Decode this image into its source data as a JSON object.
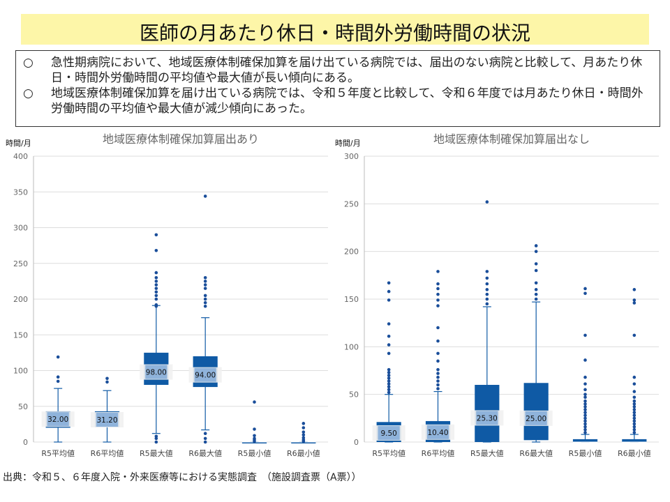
{
  "header": {
    "title": "医師の月あたり休日・時間外労働時間の状況"
  },
  "summary": [
    {
      "mark": "○",
      "text": "急性期病院において、地域医療体制確保加算を届け出ている病院では、届出のない病院と比較して、月あたり休日・時間外労働時間の平均値や最大値が長い傾向にある。"
    },
    {
      "mark": "○",
      "text": "地域医療体制確保加算を届け出ている病院では、令和５年度と比較して、令和６年度では月あたり休日・時間外労働時間の平均値や最大値が減少傾向にあった。"
    }
  ],
  "footer": {
    "source": "出典：令和５、６年度入院・外来医療等における実態調査　（施設調査票（A票））"
  },
  "colors": {
    "box": "#0f5aa5",
    "median_label_bg": "#8fb3db",
    "outlier": "#1a4e9a",
    "grid": "#dddddd"
  },
  "chart_data": [
    {
      "type": "box",
      "title": "地域医療体制確保加算届出あり",
      "ylabel": "時間/月",
      "ylim": [
        0,
        400
      ],
      "yticks": [
        0,
        50,
        100,
        150,
        200,
        250,
        300,
        350,
        400
      ],
      "categories": [
        "R5平均値",
        "R6平均値",
        "R5最大値",
        "R6最大値",
        "R5最小値",
        "R6最小値"
      ],
      "boxes": [
        {
          "category": "R5平均値",
          "whisker_low": 0,
          "q1": 20,
          "median": 32,
          "q3": 43,
          "whisker_high": 75,
          "label": "32.00",
          "outliers": [
            85,
            91,
            119
          ]
        },
        {
          "category": "R6平均値",
          "whisker_low": 0,
          "q1": 21,
          "median": 31.2,
          "q3": 43,
          "whisker_high": 72,
          "label": "31.20",
          "outliers": [
            84,
            89
          ]
        },
        {
          "category": "R5最大値",
          "whisker_low": 12,
          "q1": 80,
          "median": 98,
          "q3": 125,
          "whisker_high": 191,
          "label": "98.00",
          "outliers": [
            0,
            5,
            8,
            190,
            192,
            200,
            205,
            210,
            215,
            220,
            225,
            230,
            237,
            268,
            290
          ]
        },
        {
          "category": "R6最大値",
          "whisker_low": 17,
          "q1": 77,
          "median": 94,
          "q3": 120,
          "whisker_high": 174,
          "label": "94.00",
          "outliers": [
            0,
            5,
            12,
            190,
            195,
            200,
            205,
            215,
            220,
            225,
            230,
            344
          ]
        },
        {
          "category": "R5最小値",
          "whisker_low": 0,
          "q1": 0,
          "median": 0,
          "q3": 0,
          "whisker_high": 0,
          "label": "",
          "outliers": [
            1,
            3,
            5,
            9,
            18,
            56
          ]
        },
        {
          "category": "R6最小値",
          "whisker_low": 0,
          "q1": 0,
          "median": 0,
          "q3": 0,
          "whisker_high": 0,
          "label": "",
          "outliers": [
            1,
            3,
            6,
            10,
            14,
            20,
            26
          ]
        }
      ]
    },
    {
      "type": "box",
      "title": "地域医療体制確保加算届出なし",
      "ylabel": "時間/月",
      "ylim": [
        0,
        300
      ],
      "yticks": [
        0,
        50,
        100,
        150,
        200,
        250,
        300
      ],
      "categories": [
        "R5平均値",
        "R6平均値",
        "R5最大値",
        "R6最大値",
        "R5最小値",
        "R6最小値"
      ],
      "boxes": [
        {
          "category": "R5平均値",
          "whisker_low": 0,
          "q1": 0,
          "median": 9.5,
          "q3": 21,
          "whisker_high": 50,
          "label": "9.50",
          "outliers": [
            52,
            55,
            58,
            61,
            64,
            67,
            70,
            73,
            76,
            93,
            102,
            111,
            124,
            149,
            158,
            167
          ]
        },
        {
          "category": "R6平均値",
          "whisker_low": 0,
          "q1": 0,
          "median": 10.4,
          "q3": 22,
          "whisker_high": 53,
          "label": "10.40",
          "outliers": [
            56,
            60,
            64,
            68,
            72,
            76,
            85,
            93,
            106,
            120,
            143,
            149,
            155,
            161,
            166,
            179
          ]
        },
        {
          "category": "R5最大値",
          "whisker_low": 0,
          "q1": 0,
          "median": 25.3,
          "q3": 60,
          "whisker_high": 142,
          "label": "25.30",
          "outliers": [
            145,
            150,
            155,
            160,
            166,
            172,
            179,
            252
          ]
        },
        {
          "category": "R6最大値",
          "whisker_low": 0,
          "q1": 2,
          "median": 25,
          "q3": 62,
          "whisker_high": 147,
          "label": "25.00",
          "outliers": [
            150,
            155,
            160,
            167,
            180,
            187,
            200,
            206
          ]
        },
        {
          "category": "R5最小値",
          "whisker_low": 0,
          "q1": 0,
          "median": 0,
          "q3": 3,
          "whisker_high": 8,
          "label": "",
          "outliers": [
            10,
            13,
            16,
            19,
            22,
            25,
            28,
            31,
            34,
            37,
            40,
            43,
            47,
            50,
            55,
            61,
            68,
            86,
            112,
            156,
            161
          ]
        },
        {
          "category": "R6最小値",
          "whisker_low": 0,
          "q1": 0,
          "median": 0,
          "q3": 3,
          "whisker_high": 8,
          "label": "",
          "outliers": [
            10,
            13,
            16,
            19,
            22,
            25,
            28,
            31,
            34,
            37,
            40,
            43,
            47,
            53,
            61,
            68,
            112,
            146,
            149,
            160
          ]
        }
      ]
    }
  ]
}
